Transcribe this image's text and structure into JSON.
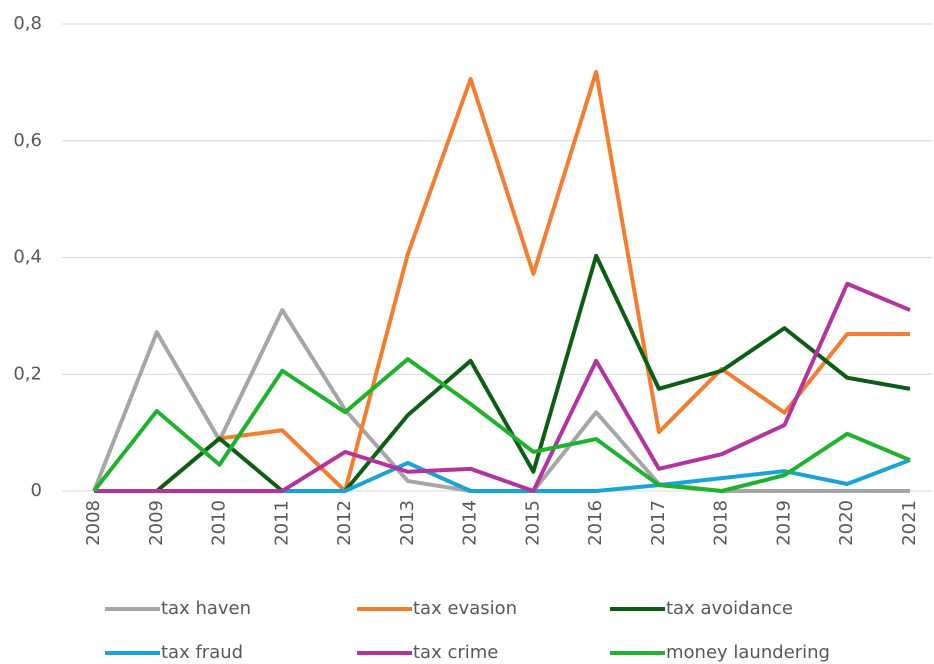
{
  "chart_data": {
    "type": "line",
    "categories": [
      "2008",
      "2009",
      "2010",
      "2011",
      "2012",
      "2013",
      "2014",
      "2015",
      "2016",
      "2017",
      "2018",
      "2019",
      "2020",
      "2021"
    ],
    "series": [
      {
        "name": "tax haven",
        "color": "#a6a6a6",
        "values": [
          0,
          0.272,
          0.087,
          0.31,
          0.139,
          0.017,
          0,
          0,
          0.135,
          0.012,
          0,
          0,
          0,
          0
        ]
      },
      {
        "name": "tax evasion",
        "color": "#f47d30",
        "values": [
          0,
          0,
          0.09,
          0.104,
          0,
          0.406,
          0.706,
          0.372,
          0.718,
          0.101,
          0.209,
          0.134,
          0.269,
          0.269
        ]
      },
      {
        "name": "tax avoidance",
        "color": "#0b5e14",
        "values": [
          0,
          0,
          0.09,
          0,
          0,
          0.13,
          0.223,
          0.033,
          0.403,
          0.175,
          0.206,
          0.279,
          0.194,
          0.175
        ]
      },
      {
        "name": "tax fraud",
        "color": "#1aa3d9",
        "values": [
          0,
          0,
          0,
          0,
          0,
          0.048,
          0,
          0,
          0,
          0.01,
          0.022,
          0.034,
          0.012,
          0.053
        ]
      },
      {
        "name": "tax crime",
        "color": "#b3349f",
        "values": [
          0,
          0,
          0,
          0,
          0.067,
          0.033,
          0.038,
          0,
          0.223,
          0.038,
          0.063,
          0.113,
          0.355,
          0.31
        ]
      },
      {
        "name": "money laundering",
        "color": "#1fb22c",
        "values": [
          0,
          0.137,
          0.045,
          0.206,
          0.135,
          0.226,
          0.149,
          0.067,
          0.089,
          0.01,
          0,
          0.027,
          0.098,
          0.053
        ]
      }
    ],
    "ylim": [
      0,
      0.8
    ],
    "yticks": [
      0,
      {
        "value": 0.2,
        "label": "0,2"
      },
      {
        "value": 0.4,
        "label": "0,4"
      },
      {
        "value": 0.6,
        "label": "0,6"
      },
      {
        "value": 0.8,
        "label": "0,8"
      }
    ],
    "grid": true
  }
}
